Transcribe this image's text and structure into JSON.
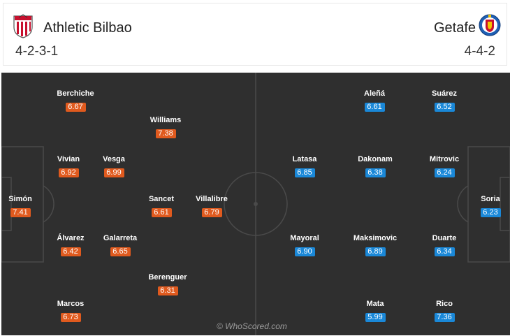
{
  "home": {
    "name": "Athletic Bilbao",
    "formation": "4-2-3-1",
    "crest_icon": "athletic-bilbao-crest-icon",
    "rating_color": "#e05a1e",
    "players": [
      {
        "name": "Berchiche",
        "rating": "6.67"
      },
      {
        "name": "Williams",
        "rating": "7.38"
      },
      {
        "name": "Vivian",
        "rating": "6.92"
      },
      {
        "name": "Vesga",
        "rating": "6.99"
      },
      {
        "name": "Simón",
        "rating": "7.41"
      },
      {
        "name": "Sancet",
        "rating": "6.61"
      },
      {
        "name": "Villalibre",
        "rating": "6.79"
      },
      {
        "name": "Álvarez",
        "rating": "6.42"
      },
      {
        "name": "Galarreta",
        "rating": "6.65"
      },
      {
        "name": "Berenguer",
        "rating": "6.31"
      },
      {
        "name": "Marcos",
        "rating": "6.73"
      }
    ]
  },
  "away": {
    "name": "Getafe",
    "formation": "4-4-2",
    "crest_icon": "getafe-crest-icon",
    "rating_color": "#1a88d8",
    "players": [
      {
        "name": "Aleñá",
        "rating": "6.61"
      },
      {
        "name": "Suárez",
        "rating": "6.52"
      },
      {
        "name": "Latasa",
        "rating": "6.85"
      },
      {
        "name": "Dakonam",
        "rating": "6.38"
      },
      {
        "name": "Mitrovic",
        "rating": "6.24"
      },
      {
        "name": "Soria",
        "rating": "6.23"
      },
      {
        "name": "Mayoral",
        "rating": "6.90"
      },
      {
        "name": "Maksimovic",
        "rating": "6.89"
      },
      {
        "name": "Duarte",
        "rating": "6.34"
      },
      {
        "name": "Mata",
        "rating": "5.99"
      },
      {
        "name": "Rico",
        "rating": "7.36"
      }
    ]
  },
  "pitch_color": "#2f2f2f",
  "watermark": "© WhoScored.com"
}
